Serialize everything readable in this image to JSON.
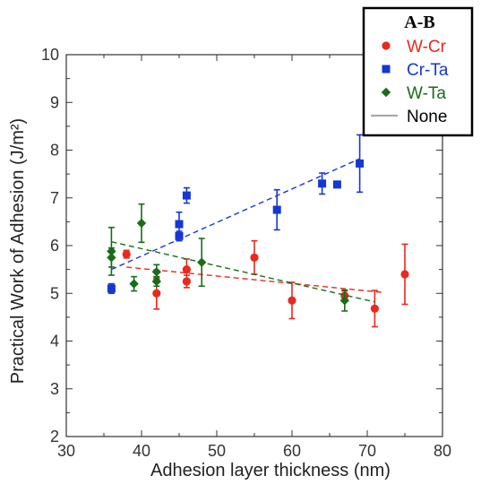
{
  "chart_data": {
    "type": "scatter",
    "title": "",
    "xlabel": "Adhesion layer thickness (nm)",
    "ylabel": "Practical Work of Adhesion (J/m²)",
    "xlim": [
      30,
      80
    ],
    "ylim": [
      2,
      10
    ],
    "x_ticks": [
      30,
      40,
      50,
      60,
      70,
      80
    ],
    "y_ticks": [
      2,
      3,
      4,
      5,
      6,
      7,
      8,
      9,
      10
    ],
    "grid": false,
    "legend": {
      "title": "A-B",
      "placement": "top-right",
      "entries": [
        "W-Cr",
        "Cr-Ta",
        "W-Ta",
        "None"
      ]
    },
    "series": [
      {
        "name": "W-Cr",
        "color": "#e8291c",
        "marker": "circle",
        "points": [
          {
            "x": 38,
            "y": 5.82,
            "err": 0.08
          },
          {
            "x": 42,
            "y": 5.0,
            "err": 0.33
          },
          {
            "x": 46,
            "y": 5.5,
            "err": 0.22
          },
          {
            "x": 46,
            "y": 5.25,
            "err": 0.13
          },
          {
            "x": 55,
            "y": 5.75,
            "err": 0.35
          },
          {
            "x": 60,
            "y": 4.85,
            "err": 0.38
          },
          {
            "x": 67,
            "y": 4.95,
            "err": 0.1
          },
          {
            "x": 71,
            "y": 4.68,
            "err": 0.38
          },
          {
            "x": 75,
            "y": 5.4,
            "err": 0.63
          }
        ],
        "trend": {
          "x": [
            38,
            72
          ],
          "y": [
            5.55,
            5.02
          ]
        }
      },
      {
        "name": "Cr-Ta",
        "color": "#1537d4",
        "marker": "square",
        "points": [
          {
            "x": 36,
            "y": 5.1,
            "err": 0.1
          },
          {
            "x": 45,
            "y": 6.45,
            "err": 0.25
          },
          {
            "x": 45,
            "y": 6.2,
            "err": 0.1
          },
          {
            "x": 46,
            "y": 7.05,
            "err": 0.16
          },
          {
            "x": 58,
            "y": 6.75,
            "err": 0.42
          },
          {
            "x": 64,
            "y": 7.3,
            "err": 0.22
          },
          {
            "x": 66,
            "y": 7.28,
            "err": 0
          },
          {
            "x": 69,
            "y": 7.72,
            "err": 0.6
          }
        ],
        "trend": {
          "x": [
            36,
            69
          ],
          "y": [
            5.5,
            7.82
          ]
        }
      },
      {
        "name": "W-Ta",
        "color": "#1a6b1a",
        "marker": "diamond",
        "points": [
          {
            "x": 36,
            "y": 5.88,
            "err": 0.5
          },
          {
            "x": 36,
            "y": 5.75,
            "err": 0.2
          },
          {
            "x": 39,
            "y": 5.2,
            "err": 0.15
          },
          {
            "x": 40,
            "y": 6.47,
            "err": 0.4
          },
          {
            "x": 42,
            "y": 5.45,
            "err": 0.15
          },
          {
            "x": 42,
            "y": 5.25,
            "err": 0.1
          },
          {
            "x": 48,
            "y": 5.65,
            "err": 0.5
          },
          {
            "x": 67,
            "y": 4.85,
            "err": 0.22
          }
        ],
        "trend": {
          "x": [
            36,
            71
          ],
          "y": [
            6.08,
            4.82
          ]
        }
      },
      {
        "name": "None",
        "color": "#aaaaaa",
        "marker": "line",
        "points": []
      }
    ]
  }
}
